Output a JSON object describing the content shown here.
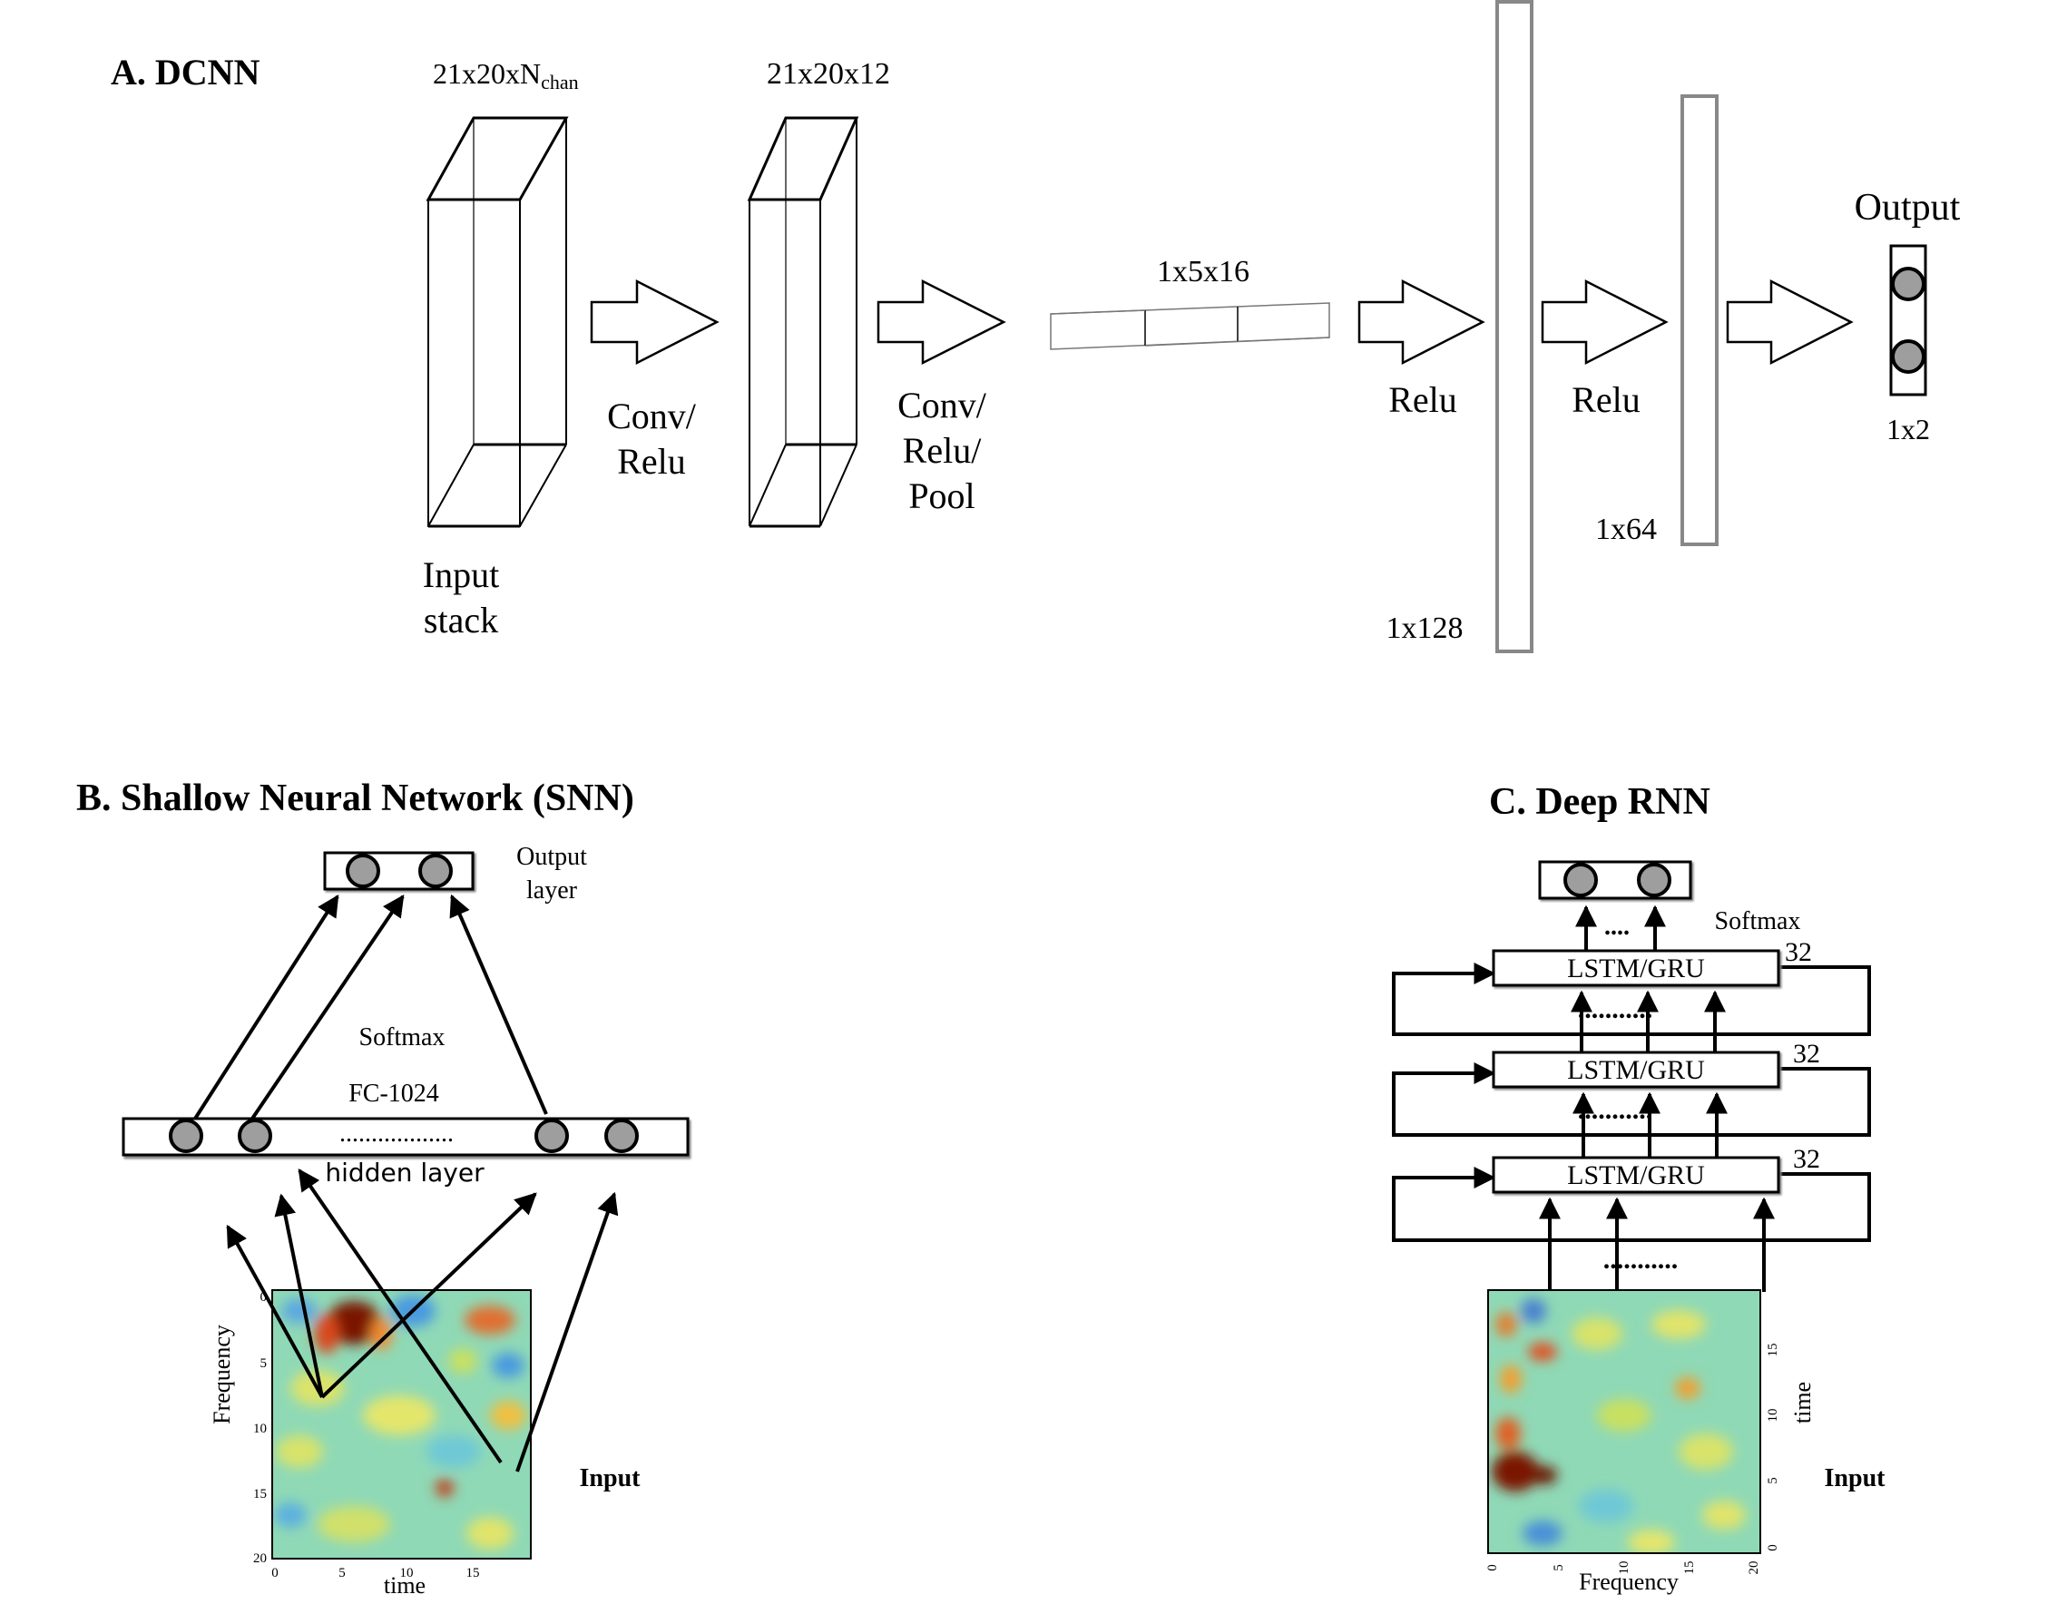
{
  "panel_a": {
    "title": "A. DCNN",
    "input_dims_prefix": "21x20xN",
    "input_dims_sub": "chan",
    "input_label_1": "Input",
    "input_label_2": "stack",
    "layer2_dims": "21x20x12",
    "arrow1_label_1": "Conv/",
    "arrow1_label_2": "Relu",
    "arrow2_label_1": "Conv/",
    "arrow2_label_2": "Relu/",
    "arrow2_label_3": "Pool",
    "flat_dims": "1x5x16",
    "relu_1": "Relu",
    "relu_2": "Relu",
    "fc1_dims": "1x128",
    "fc2_dims": "1x64",
    "output_title": "Output",
    "output_dims": "1x2"
  },
  "panel_b": {
    "title": "B. Shallow Neural Network (SNN)",
    "output_layer_1": "Output",
    "output_layer_2": "layer",
    "softmax": "Softmax",
    "fc": "FC-1024",
    "hidden_dots": "..................",
    "hidden_layer": "hidden layer",
    "y_axis_label": "Frequency",
    "x_axis_label": "time",
    "y_ticks": [
      "0",
      "5",
      "10",
      "15",
      "20"
    ],
    "x_ticks": [
      "0",
      "5",
      "10",
      "15"
    ],
    "input_label": "Input"
  },
  "panel_c": {
    "title": "C. Deep RNN",
    "softmax": "Softmax",
    "top_dots": "....",
    "cell_label": "LSTM/GRU",
    "layer_units": [
      "32",
      "32",
      "32"
    ],
    "row_dots": "...........",
    "y_axis_label": "time",
    "x_axis_label": "Frequency",
    "y_ticks": [
      "15",
      "10",
      "5",
      "0"
    ],
    "x_ticks": [
      "0",
      "5",
      "10",
      "15",
      "20"
    ],
    "input_label": "Input"
  },
  "colors": {
    "node_fill": "#9e9e9e",
    "fc_border": "#888888",
    "heatmap_base": "#8fd9b6"
  }
}
